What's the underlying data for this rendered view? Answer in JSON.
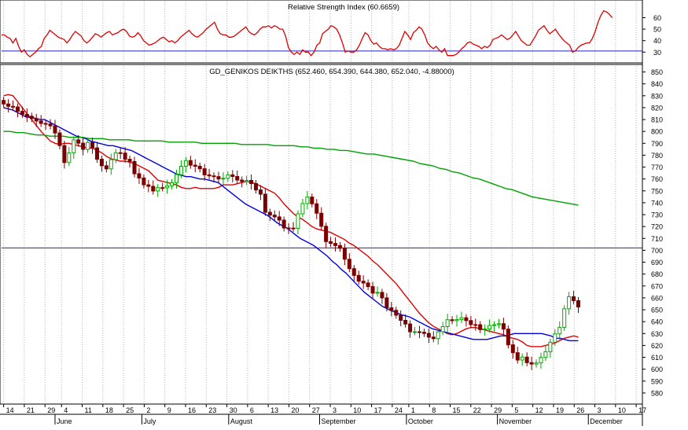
{
  "colors": {
    "background": "#ffffff",
    "grid": "#b4b4b4",
    "frame": "#000000",
    "up_candle": "#00aa00",
    "down_candle": "#7a0000",
    "rsi_line": "#e00000",
    "reference_line": "#2020c0",
    "ma_short": "#e00000",
    "ma_mid": "#0000e0",
    "ma_long": "#00a000"
  },
  "chart_data": [
    {
      "type": "line",
      "title": "Relative Strength Index (60.6659)",
      "ylim": [
        22,
        74
      ],
      "yticks": [
        30,
        40,
        50,
        60
      ],
      "reference_line": 31,
      "grid": true,
      "series": [
        {
          "name": "",
          "values": [
            45,
            45,
            43,
            42,
            38,
            42,
            35,
            30,
            32,
            28,
            26,
            28,
            30,
            33,
            35,
            42,
            45,
            49,
            47,
            45,
            43,
            42,
            41,
            38,
            41,
            45,
            48,
            46,
            44,
            40,
            38,
            40,
            43,
            46,
            45,
            43,
            45,
            47,
            48,
            45,
            46,
            47,
            49,
            50,
            48,
            44,
            43,
            44,
            47,
            44,
            40,
            38,
            36,
            37,
            38,
            40,
            42,
            43,
            41,
            39,
            40,
            38,
            40,
            43,
            45,
            47,
            49,
            46,
            44,
            43,
            45,
            47,
            50,
            52,
            54,
            56,
            50,
            46,
            45,
            45,
            43,
            43,
            44,
            46,
            48,
            50,
            52,
            48,
            46,
            45,
            47,
            50,
            52,
            52,
            53,
            51,
            53,
            52,
            50,
            50,
            44,
            34,
            30,
            28,
            30,
            28,
            32,
            30,
            30,
            27,
            30,
            36,
            38,
            46,
            48,
            50,
            53,
            52,
            50,
            45,
            38,
            30,
            31,
            30,
            30,
            32,
            36,
            42,
            47,
            45,
            40,
            37,
            38,
            35,
            33,
            33,
            32,
            33,
            32,
            33,
            36,
            42,
            48,
            45,
            41,
            47,
            49,
            52,
            50,
            45,
            38,
            35,
            33,
            35,
            32,
            30,
            33,
            27,
            27,
            27,
            28,
            30,
            33,
            35,
            38,
            39,
            37,
            36,
            35,
            33,
            35,
            34,
            36,
            41,
            42,
            43,
            45,
            43,
            41,
            42,
            45,
            48,
            44,
            40,
            38,
            36,
            36,
            40,
            44,
            49,
            51,
            53,
            49,
            46,
            48,
            50,
            46,
            43,
            40,
            38,
            36,
            30,
            31,
            34,
            36,
            37,
            38,
            38,
            42,
            48,
            56,
            62,
            66,
            65,
            63,
            60
          ]
        }
      ]
    },
    {
      "type": "line",
      "title": "GD_GENIKOS DEIKTHS (652.460, 654.390, 644.380, 652.040, -4.88000)",
      "ylim": [
        572,
        855
      ],
      "yticks": [
        580,
        590,
        600,
        610,
        620,
        630,
        640,
        650,
        660,
        670,
        680,
        690,
        700,
        710,
        720,
        730,
        740,
        750,
        760,
        770,
        780,
        790,
        800,
        810,
        820,
        830,
        840,
        850
      ],
      "reference_line": 702,
      "grid": true,
      "x_tick_labels": [
        "14",
        "21",
        "29",
        "4",
        "11",
        "18",
        "25",
        "2",
        "9",
        "16",
        "23",
        "30",
        "6",
        "13",
        "20",
        "27",
        "3",
        "10",
        "17",
        "24",
        "1",
        "8",
        "15",
        "22",
        "29",
        "5",
        "12",
        "19",
        "26",
        "3",
        "10",
        "17"
      ],
      "x_tick_index": [
        0,
        5,
        10,
        14,
        19,
        24,
        29,
        34,
        39,
        44,
        49,
        54,
        59,
        64,
        69,
        74,
        79,
        84,
        89,
        94,
        98,
        103,
        108,
        113,
        118,
        123,
        128,
        133,
        138,
        143,
        148,
        153
      ],
      "month_labels": [
        "June",
        "July",
        "August",
        "September",
        "October",
        "November",
        "December"
      ],
      "month_index": [
        13,
        34,
        55,
        77,
        98,
        120,
        142
      ],
      "total_slots": 155,
      "candles": {
        "close": [
          823.1,
          821.1,
          820.6,
          816.9,
          814.4,
          812.8,
          810.8,
          808.8,
          806.7,
          806.3,
          804.7,
          798.7,
          788.1,
          773.8,
          782.0,
          792.9,
          790.1,
          784.9,
          790.8,
          786.2,
          776.6,
          771.1,
          768.5,
          776.3,
          782.1,
          781.8,
          776.6,
          774.7,
          764.4,
          760.8,
          755.1,
          753.8,
          749.9,
          752.7,
          752.6,
          754.3,
          756.9,
          763.7,
          770.7,
          775.5,
          771.6,
          770.7,
          768.6,
          763.5,
          762.6,
          762.0,
          760.0,
          760.6,
          763.5,
          762.1,
          759.1,
          757.9,
          758.8,
          756.1,
          750.8,
          747.2,
          732.0,
          729.6,
          728.1,
          725.4,
          718.8,
          718.7,
          718.5,
          730.7,
          739.3,
          744.8,
          739.1,
          731.2,
          720.2,
          707.3,
          705.8,
          704.0,
          701.7,
          692.5,
          684.6,
          678.9,
          674.0,
          672.5,
          669.5,
          664.0,
          664.6,
          660.0,
          651.6,
          649.5,
          645.4,
          641.1,
          638.0,
          631.5,
          631.5,
          631.1,
          630.1,
          627.0,
          625.7,
          631.5,
          635.8,
          641.6,
          640.8,
          641.7,
          643.3,
          640.9,
          637.5,
          637.4,
          633.3,
          633.8,
          636.8,
          637.4,
          638.3,
          633.7,
          620.5,
          613.9,
          607.7,
          610.2,
          605.5,
          604.3,
          605.3,
          609.9,
          614.7,
          622.7,
          629.7,
          635.2,
          650.8,
          661.0,
          657.6,
          652.4
        ],
        "offset": 0
      },
      "series": [
        {
          "name": "",
          "role": "ma_short",
          "values": [
            830,
            831,
            830,
            825,
            820,
            815,
            810,
            805,
            800,
            796,
            792,
            790,
            789,
            790,
            790,
            789,
            788,
            787,
            786,
            786,
            784,
            782,
            779,
            777,
            776,
            775,
            775,
            774,
            773,
            771,
            769,
            767,
            763,
            759,
            758,
            757,
            756,
            755,
            753,
            752,
            752,
            753,
            752,
            752,
            752,
            752,
            753,
            755,
            755,
            755,
            756,
            757,
            758,
            757,
            756,
            754,
            752,
            750,
            748,
            744,
            739,
            735,
            731,
            728,
            726,
            723,
            720,
            718,
            717,
            716,
            715,
            713,
            711,
            709,
            706,
            704,
            701,
            698,
            695,
            691,
            688,
            684,
            680,
            676,
            672,
            667,
            662,
            657,
            652,
            647,
            643,
            639,
            636,
            634,
            632,
            630,
            629,
            630,
            632,
            634,
            635,
            635,
            634,
            633,
            632,
            631,
            630,
            629,
            627,
            626,
            625,
            623,
            620,
            619,
            619,
            619,
            620,
            621,
            622,
            624,
            626,
            627,
            628,
            627
          ]
        },
        {
          "name": "",
          "role": "ma_mid",
          "values": [
            820,
            819,
            818,
            816,
            814,
            812,
            812,
            811,
            810,
            810,
            808,
            806,
            804,
            802,
            800,
            798,
            796,
            795,
            794,
            792,
            791,
            790,
            789,
            788,
            788,
            787,
            786,
            785,
            784,
            782,
            780,
            778,
            776,
            774,
            772,
            770,
            768,
            766,
            764,
            763,
            762,
            762,
            761,
            760,
            760,
            759,
            758,
            757,
            754,
            751,
            748,
            745,
            742,
            739,
            737,
            735,
            733,
            731,
            729,
            726,
            723,
            721,
            719,
            716,
            713,
            710,
            708,
            706,
            704,
            701,
            698,
            695,
            691,
            688,
            684,
            681,
            677,
            673,
            669,
            665,
            662,
            659,
            656,
            653,
            651,
            649,
            648,
            646,
            645,
            644,
            642,
            640,
            638,
            636,
            634,
            633,
            632,
            631,
            630,
            629,
            628,
            627,
            626,
            625,
            625,
            625,
            625,
            626,
            627,
            628,
            628,
            629,
            630,
            630,
            630,
            630,
            630,
            630,
            630,
            629,
            628,
            626,
            626,
            625,
            624,
            624,
            624
          ]
        },
        {
          "name": "",
          "role": "ma_long",
          "values": [
            800,
            800,
            799,
            799,
            798,
            797,
            797,
            796,
            796,
            796,
            795,
            795,
            795,
            794,
            794,
            794,
            793,
            793,
            793,
            793,
            792,
            792,
            792,
            792,
            792,
            791,
            791,
            791,
            791,
            791,
            790,
            790,
            790,
            790,
            790,
            790,
            789,
            789,
            789,
            789,
            789,
            788,
            788,
            788,
            788,
            787,
            787,
            786,
            786,
            785,
            785,
            784,
            784,
            783,
            782,
            781,
            781,
            780,
            779,
            778,
            777,
            776,
            775,
            773,
            772,
            771,
            769,
            768,
            766,
            765,
            763,
            761,
            760,
            758,
            756,
            754,
            752,
            751,
            749,
            747,
            745,
            744,
            743,
            742,
            741,
            740,
            739,
            738
          ]
        }
      ]
    }
  ]
}
